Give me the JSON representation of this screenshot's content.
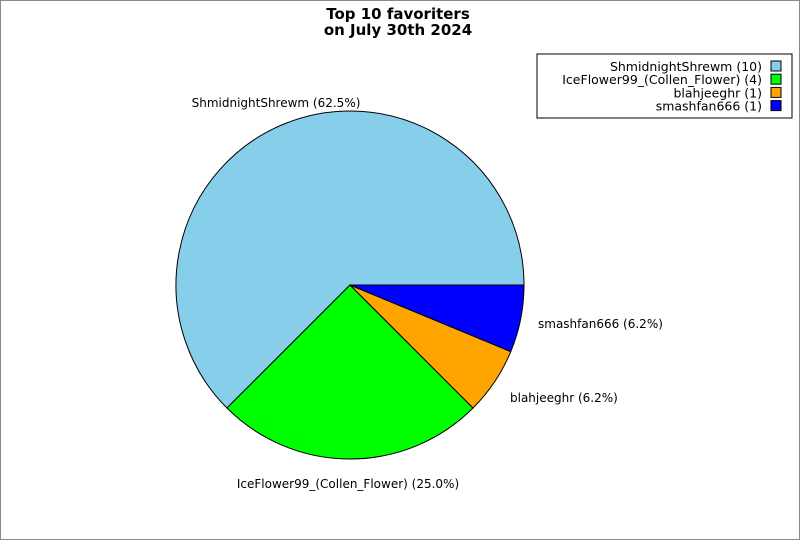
{
  "chart_data": {
    "type": "pie",
    "title": [
      "Top 10 favoriters",
      "on July 30th 2024"
    ],
    "slices": [
      {
        "label": "ShmidnightShrewm",
        "value": 10,
        "percent_label": "ShmidnightShrewm (62.5%)",
        "legend_label": "ShmidnightShrewm (10)",
        "color": "#87ceeb"
      },
      {
        "label": "IceFlower99_(Collen_Flower)",
        "value": 4,
        "percent_label": "IceFlower99_(Collen_Flower) (25.0%)",
        "legend_label": "IceFlower99_(Collen_Flower) (4)",
        "color": "#00ff00"
      },
      {
        "label": "blahjeeghr",
        "value": 1,
        "percent_label": "blahjeeghr (6.2%)",
        "legend_label": "blahjeeghr (1)",
        "color": "#ffa500"
      },
      {
        "label": "smashfan666",
        "value": 1,
        "percent_label": "smashfan666 (6.2%)",
        "legend_label": "smashfan666 (1)",
        "color": "#0000ff"
      }
    ],
    "start_angle_deg": 0,
    "direction": "counterclockwise",
    "legend_position": "top-right"
  }
}
